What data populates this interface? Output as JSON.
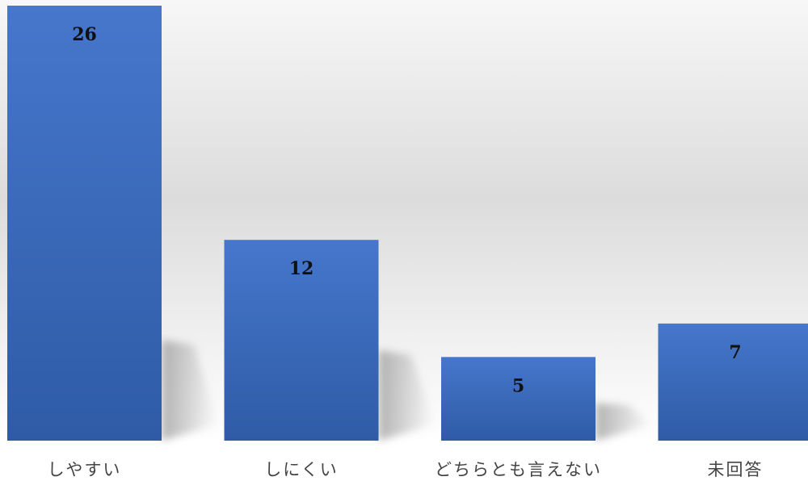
{
  "chart_data": {
    "type": "bar",
    "categories": [
      "しやすい",
      "しにくい",
      "どちらとも言えない",
      "未回答"
    ],
    "values": [
      26,
      12,
      5,
      7
    ],
    "title": "",
    "xlabel": "",
    "ylabel": "",
    "ylim": [
      0,
      26
    ],
    "grid": false,
    "legend": "none",
    "data_labels": true
  },
  "colors": {
    "bar_top": "#4677CC",
    "bar_bottom": "#2F5BA6",
    "background_top": "#F7F7F7",
    "background_mid": "#DCDCDC",
    "background_bottom": "#FFFFFF",
    "shadow": "#9A9A9A"
  }
}
